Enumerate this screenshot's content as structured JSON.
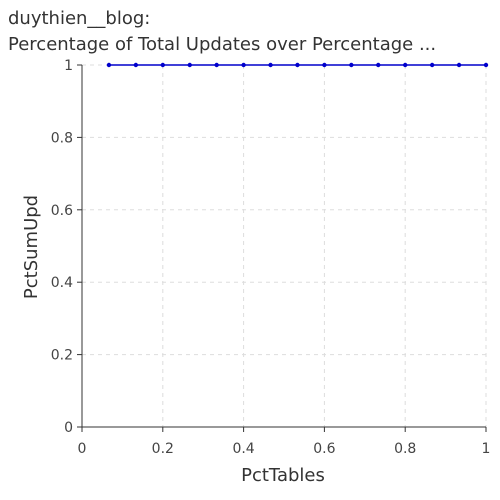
{
  "title_lines": [
    "duythien__blog:",
    "Percentage of Total Updates over Percentage ..."
  ],
  "chart_data": {
    "type": "line",
    "title": "duythien__blog: Percentage of Total Updates over Percentage ...",
    "xlabel": "PctTables",
    "ylabel": "PctSumUpd",
    "xlim": [
      0,
      1
    ],
    "ylim": [
      0,
      1
    ],
    "x_ticks": [
      0,
      0.2,
      0.4,
      0.6,
      0.8,
      1
    ],
    "x_tick_labels": [
      "0",
      "0.2",
      "0.4",
      "0.6",
      "0.8",
      "1"
    ],
    "y_ticks": [
      0,
      0.2,
      0.4,
      0.6,
      0.8,
      1
    ],
    "y_tick_labels": [
      "0",
      "0.2",
      "0.4",
      "0.6",
      "0.8",
      "1"
    ],
    "grid": true,
    "series": [
      {
        "color": "#0000cc",
        "x": [
          0.0667,
          0.1333,
          0.2,
          0.2667,
          0.3333,
          0.4,
          0.4667,
          0.5333,
          0.6,
          0.6667,
          0.7333,
          0.8,
          0.8667,
          0.9333,
          1.0
        ],
        "y": [
          1,
          1,
          1,
          1,
          1,
          1,
          1,
          1,
          1,
          1,
          1,
          1,
          1,
          1,
          1
        ]
      }
    ]
  }
}
